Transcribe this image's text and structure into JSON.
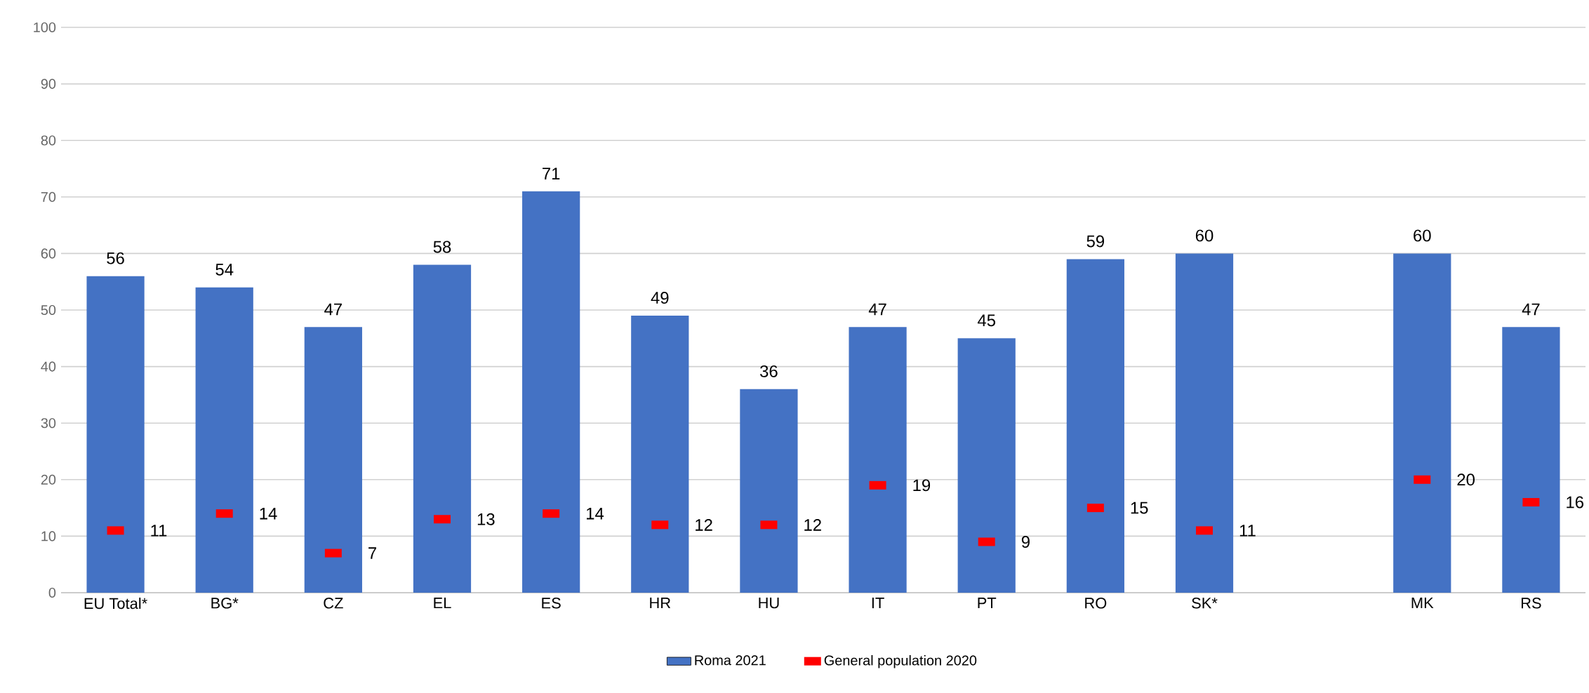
{
  "chart_data": {
    "type": "bar",
    "categories": [
      "EU Total*",
      "BG*",
      "CZ",
      "EL",
      "ES",
      "HR",
      "HU",
      "IT",
      "PT",
      "RO",
      "SK*",
      null,
      "MK",
      "RS"
    ],
    "series": [
      {
        "name": "Roma 2021",
        "color": "#4472c4",
        "values": [
          56,
          54,
          47,
          58,
          71,
          49,
          36,
          47,
          45,
          59,
          60,
          null,
          60,
          47
        ]
      },
      {
        "name": "General population 2020",
        "type": "scatter",
        "color": "#ff0000",
        "values": [
          11,
          14,
          7,
          13,
          14,
          12,
          12,
          19,
          9,
          15,
          11,
          null,
          20,
          16
        ]
      }
    ],
    "ylim": [
      0,
      100
    ],
    "yticks": [
      0,
      10,
      20,
      30,
      40,
      50,
      60,
      70,
      80,
      90,
      100
    ],
    "grid": "y",
    "legend": "bottom",
    "data_labels": true
  }
}
